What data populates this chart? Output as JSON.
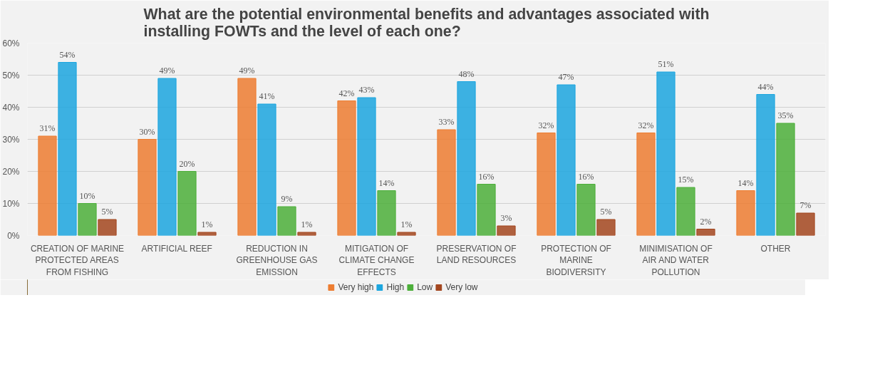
{
  "chart_data": {
    "type": "bar",
    "title": "What are the potential environmental benefits and advantages associated with installing FOWTs and the level of each one?",
    "categories": [
      "CREATION OF MARINE PROTECTED AREAS FROM FISHING",
      "ARTIFICIAL REEF",
      "REDUCTION IN GREENHOUSE GAS EMISSION",
      "MITIGATION OF CLIMATE CHANGE EFFECTS",
      "PRESERVATION OF LAND RESOURCES",
      "PROTECTION OF MARINE BIODIVERSITY",
      "MINIMISATION OF AIR AND WATER POLLUTION",
      "OTHER"
    ],
    "series": [
      {
        "name": "Very high",
        "color": "#ed7d31",
        "values": [
          31,
          30,
          49,
          42,
          33,
          32,
          32,
          14
        ],
        "value_labels": [
          "31%",
          "30%",
          "49%",
          "42%",
          "33%",
          "32%",
          "32%",
          "14%"
        ]
      },
      {
        "name": "High",
        "color": "#1ca6df",
        "values": [
          54,
          49,
          41,
          43,
          48,
          47,
          51,
          44
        ],
        "value_labels": [
          "54%",
          "49%",
          "41%",
          "43%",
          "48%",
          "47%",
          "51%",
          "44%"
        ]
      },
      {
        "name": "Low",
        "color": "#4caf3a",
        "values": [
          10,
          20,
          9,
          14,
          16,
          16,
          15,
          35
        ],
        "value_labels": [
          "10%",
          "20%",
          "9%",
          "14%",
          "16%",
          "16%",
          "15%",
          "35%"
        ]
      },
      {
        "name": "Very low",
        "color": "#a3461f",
        "values": [
          5,
          1,
          1,
          1,
          3,
          5,
          2,
          7
        ],
        "value_labels": [
          "5%",
          "1%",
          "1%",
          "1%",
          "3%",
          "5%",
          "2%",
          "7%"
        ]
      }
    ],
    "ylim": [
      0,
      60
    ],
    "yticks": [
      {
        "value": 0,
        "label": "0%"
      },
      {
        "value": 10,
        "label": "10%"
      },
      {
        "value": 20,
        "label": "20%"
      },
      {
        "value": 30,
        "label": "30%"
      },
      {
        "value": 40,
        "label": "40%"
      },
      {
        "value": 50,
        "label": "50%"
      },
      {
        "value": 60,
        "label": "60%"
      }
    ],
    "grid": "y",
    "legend": "bottom"
  }
}
